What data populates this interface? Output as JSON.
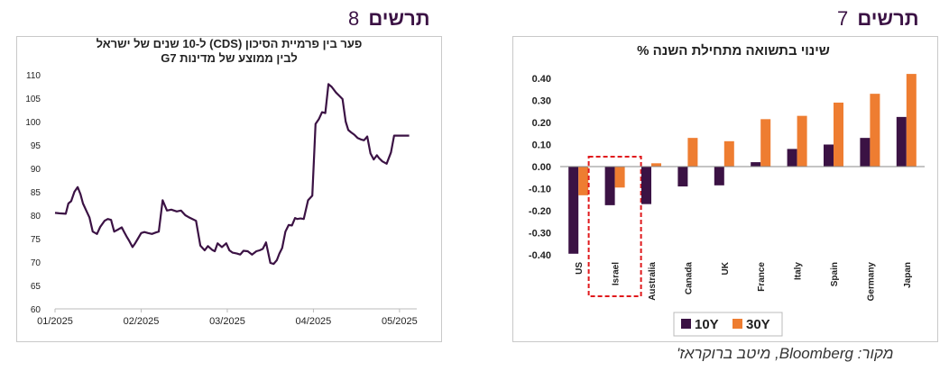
{
  "headings": {
    "left": {
      "word": "תרשים",
      "num": "8"
    },
    "right": {
      "word": "תרשים",
      "num": "7"
    }
  },
  "source": "מקור: Bloomberg, מיטב ברוקראז'",
  "colors": {
    "line": "#3b1244",
    "series_10y": "#3b1244",
    "series_30y": "#ee7d31",
    "highlight": "#e0191c"
  },
  "chart_data": [
    {
      "type": "line",
      "title": [
        "פער בין פרמיית הסיכון (CDS) ל-10 שנים של ישראל",
        "לבין ממוצע של מדינות G7"
      ],
      "xticks": [
        "01/2025",
        "02/2025",
        "03/2025",
        "04/2025",
        "05/2025"
      ],
      "ylim": [
        60,
        110
      ],
      "yticks": [
        60,
        65,
        70,
        75,
        80,
        85,
        90,
        95,
        100,
        105,
        110
      ],
      "grid": false,
      "x": [
        0.0,
        0.2,
        0.5,
        0.62,
        0.75,
        0.9,
        1.05,
        1.18,
        1.3,
        1.45,
        1.6,
        1.75,
        1.95,
        2.1,
        2.3,
        2.45,
        2.6,
        2.75,
        2.95,
        3.1,
        3.2,
        3.32,
        3.45,
        3.6,
        3.72,
        3.85,
        4.0,
        4.15,
        4.32,
        4.5,
        4.68,
        4.82,
        5.0,
        5.2,
        5.4,
        5.65,
        5.85,
        5.95,
        6.05,
        6.2,
        6.38,
        6.55,
        6.75,
        6.95,
        7.1,
        7.2,
        7.3,
        7.42,
        7.55,
        7.75,
        7.95,
        8.1,
        8.25,
        8.45,
        8.6,
        8.75,
        8.95,
        9.15,
        9.35,
        9.5,
        9.65,
        9.8,
        10.0,
        10.15,
        10.3,
        10.42,
        10.55,
        10.7,
        10.85,
        11.0,
        11.15,
        11.25,
        11.4,
        11.55,
        11.75,
        11.95,
        12.1,
        12.25,
        12.4,
        12.55,
        12.7,
        12.85,
        13.05,
        13.2,
        13.35,
        13.5,
        13.62,
        13.75,
        13.9,
        14.05,
        14.2,
        14.35,
        14.5,
        14.65,
        14.8,
        14.95,
        15.05,
        15.2,
        15.4,
        15.6,
        15.75,
        15.9,
        16.0,
        16.2,
        16.45
      ],
      "y": [
        80.5,
        80.4,
        80.3,
        82.5,
        83.0,
        85.0,
        86.0,
        84.5,
        82.5,
        81.0,
        79.5,
        76.5,
        76.0,
        77.5,
        78.8,
        79.2,
        79.0,
        76.5,
        77.0,
        77.4,
        76.5,
        75.5,
        74.5,
        73.2,
        74.0,
        75.0,
        76.2,
        76.4,
        76.2,
        76.0,
        76.3,
        76.5,
        83.2,
        81.0,
        81.2,
        80.8,
        81.0,
        80.5,
        80.0,
        79.6,
        79.2,
        78.8,
        73.5,
        72.5,
        73.4,
        73.0,
        72.6,
        72.3,
        74.0,
        73.2,
        74.0,
        72.5,
        72.0,
        71.8,
        71.6,
        72.4,
        72.3,
        71.6,
        72.3,
        72.5,
        72.8,
        74.2,
        69.8,
        69.6,
        70.4,
        71.8,
        73.0,
        76.5,
        77.9,
        77.8,
        79.4,
        79.2,
        79.3,
        79.2,
        83.2,
        84.2,
        99.5,
        100.5,
        102.0,
        101.8,
        108.0,
        107.4,
        106.2,
        105.5,
        104.8,
        100.0,
        98.2,
        97.7,
        97.2,
        96.5,
        96.2,
        96.0,
        96.8,
        93.2,
        91.9,
        92.8,
        92.2,
        91.5,
        91.0,
        93.4,
        97.0,
        97.0,
        97.0,
        97.0,
        97.0
      ]
    },
    {
      "type": "bar",
      "title": "שינוי בתשואה מתחילת השנה %",
      "categories": [
        "US",
        "Israel",
        "Australia",
        "Canada",
        "UK",
        "France",
        "Italy",
        "Spain",
        "Germany",
        "Japan"
      ],
      "ylim": [
        -0.4,
        0.4
      ],
      "yticks": [
        "0.40",
        "0.30",
        "0.20",
        "0.10",
        "0.00",
        "-0.10",
        "-0.20",
        "-0.30",
        "-0.40"
      ],
      "series": [
        {
          "name": "10Y",
          "values": [
            -0.395,
            -0.175,
            -0.17,
            -0.09,
            -0.085,
            0.02,
            0.08,
            0.1,
            0.13,
            0.225
          ]
        },
        {
          "name": "30Y",
          "values": [
            -0.13,
            -0.095,
            0.015,
            0.13,
            0.115,
            0.215,
            0.23,
            0.29,
            0.33,
            0.42
          ]
        }
      ],
      "highlight_category": "Israel",
      "legend": "bottom"
    }
  ]
}
